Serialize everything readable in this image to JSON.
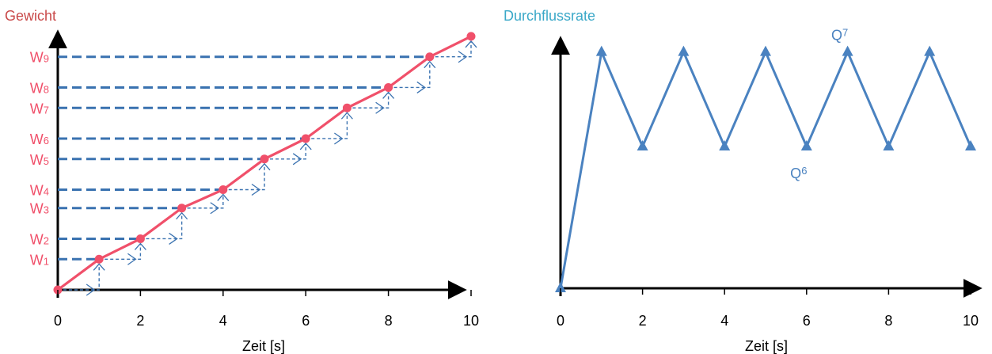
{
  "colors": {
    "weight": "#f0506a",
    "weight_title": "#c94a4a",
    "flow": "#4a82c0",
    "flow_title": "#3aa8c8",
    "guide": "#3a72b0",
    "axis": "#000000"
  },
  "chart_data": [
    {
      "type": "line",
      "title": "Gewicht",
      "xlabel": "Zeit [s]",
      "ylabel": "Gewicht",
      "xlim": [
        0,
        10
      ],
      "xticks": [
        "0",
        "2",
        "4",
        "6",
        "8",
        "10"
      ],
      "series": [
        {
          "x": [
            0,
            1,
            2,
            3,
            4,
            5,
            6,
            7,
            8,
            9,
            10
          ],
          "y": [
            0,
            1.5,
            2.5,
            4.0,
            4.9,
            6.4,
            7.4,
            8.9,
            9.9,
            11.4,
            12.4
          ]
        }
      ],
      "y_labels": [
        {
          "text": "W",
          "sub": "1",
          "level": 1.5
        },
        {
          "text": "W",
          "sub": "2",
          "level": 2.5
        },
        {
          "text": "W",
          "sub": "3",
          "level": 4.0
        },
        {
          "text": "W",
          "sub": "4",
          "level": 4.9
        },
        {
          "text": "W",
          "sub": "5",
          "level": 6.4
        },
        {
          "text": "W",
          "sub": "6",
          "level": 7.4
        },
        {
          "text": "W",
          "sub": "7",
          "level": 8.9
        },
        {
          "text": "W",
          "sub": "8",
          "level": 9.9
        },
        {
          "text": "W",
          "sub": "9",
          "level": 11.4
        }
      ],
      "ylim": [
        0,
        12.9
      ],
      "grid": false
    },
    {
      "type": "line",
      "title": "Durchflussrate",
      "xlabel": "Zeit [s]",
      "xlim": [
        0,
        10
      ],
      "xticks": [
        "0",
        "2",
        "4",
        "6",
        "8",
        "10"
      ],
      "series": [
        {
          "x": [
            0,
            1,
            2,
            3,
            4,
            5,
            6,
            7,
            8,
            9,
            10
          ],
          "y": [
            0,
            1.0,
            0.6,
            1.0,
            0.6,
            1.0,
            0.6,
            1.0,
            0.6,
            1.0,
            0.6
          ]
        }
      ],
      "annotations": [
        {
          "text": "Q",
          "sub": "7",
          "x": 7,
          "y": 1.0
        },
        {
          "text": "Q",
          "sub": "6",
          "x": 6,
          "y": 0.6
        }
      ],
      "ylim": [
        0,
        1.2
      ],
      "grid": false
    }
  ]
}
